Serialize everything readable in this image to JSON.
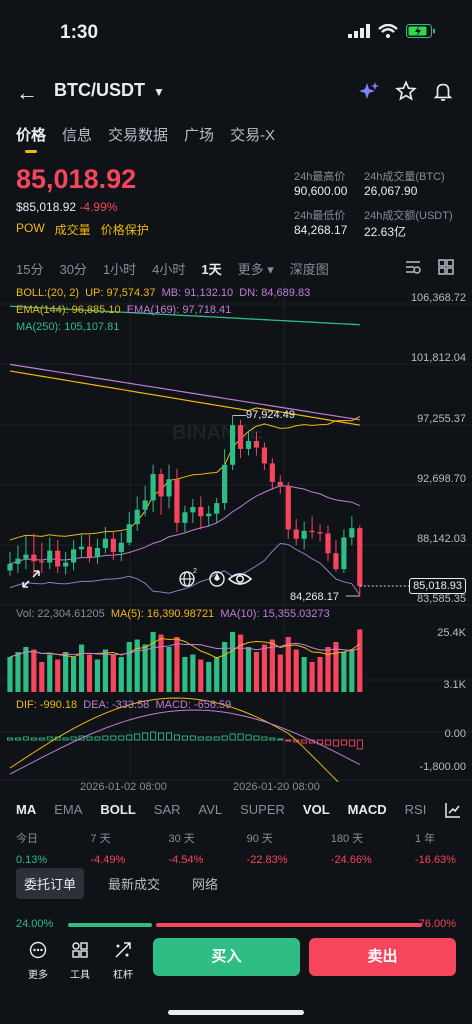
{
  "status": {
    "time": "1:30"
  },
  "header": {
    "pair": "BTC/USDT"
  },
  "tabs": [
    {
      "label": "价格"
    },
    {
      "label": "信息"
    },
    {
      "label": "交易数据"
    },
    {
      "label": "广场"
    },
    {
      "label": "交易-X"
    }
  ],
  "ticker": {
    "last_price": "85,018.92",
    "usd_price": "$85,018.92",
    "change_pct": "-4.99%",
    "tags": [
      "POW",
      "成交量",
      "价格保护"
    ],
    "high_label": "24h最高价",
    "high": "90,600.00",
    "vol_btc_label": "24h成交量(BTC)",
    "vol_btc": "26,067.90",
    "low_label": "24h最低价",
    "low": "84,268.17",
    "vol_usdt_label": "24h成交额(USDT)",
    "vol_usdt": "22.63亿"
  },
  "intervals": [
    "15分",
    "30分",
    "1小时",
    "4小时",
    "1天",
    "更多 ▾",
    "深度图"
  ],
  "indicators": {
    "boll": "BOLL:(20, 2)",
    "up": "UP: 97,574.37",
    "mb": "MB: 91,132.10",
    "dn": "DN: 84,689.83",
    "ema144": "EMA(144): 96,885.10",
    "ema169": "EMA(169): 97,718.41",
    "ma250": "MA(250): 105,107.81",
    "vol": "Vol: 22,304.61205",
    "ma5": "MA(5): 16,390.98721",
    "ma10": "MA(10): 15,355.03273",
    "dif": "DIF: -990.18",
    "dea": "DEA: -333.58",
    "macd": "MACD: -656.59"
  },
  "axis": {
    "price_ticks": [
      "106,368.72",
      "101,812.04",
      "97,255.37",
      "92,698.70",
      "88,142.03",
      "83,585.35"
    ],
    "current_price": "85,018.93",
    "high_mark": "97,924.49",
    "low_mark": "84,268.17",
    "vol_ticks": [
      "25.4K",
      "3.1K"
    ],
    "macd_ticks": [
      "0.00",
      "-1,800.00"
    ],
    "dates": [
      "2026-01-02 08:00",
      "2026-01-20 08:00"
    ],
    "watermark": "BINANCE"
  },
  "indicator_tabs": [
    "MA",
    "EMA",
    "BOLL",
    "SAR",
    "AVL",
    "SUPER",
    "VOL",
    "MACD",
    "RSI"
  ],
  "performance": [
    {
      "label": "今日",
      "value": "0.13%",
      "dir": "up"
    },
    {
      "label": "7 天",
      "value": "-4.49%",
      "dir": "down"
    },
    {
      "label": "30 天",
      "value": "-4.54%",
      "dir": "down"
    },
    {
      "label": "90 天",
      "value": "-22.83%",
      "dir": "down"
    },
    {
      "label": "180 天",
      "value": "-24.66%",
      "dir": "down"
    },
    {
      "label": "1 年",
      "value": "-16.63%",
      "dir": "down"
    }
  ],
  "order_tabs": [
    "委托订单",
    "最新成交",
    "网络"
  ],
  "ratio": {
    "buy": "24.00%",
    "sell": "76.00%",
    "buy_fraction": 0.24
  },
  "bottom": {
    "more": "更多",
    "tools": "工具",
    "leverage": "杠杆",
    "buy": "买入",
    "sell": "卖出"
  },
  "colors": {
    "up": "#2ebd85",
    "down": "#f6465d",
    "accent": "#f0b90b"
  },
  "chart_data": {
    "type": "candlestick",
    "candles": [
      [
        86200,
        86700,
        87600,
        85800
      ],
      [
        86700,
        87100,
        88100,
        86000
      ],
      [
        87100,
        87400,
        88800,
        86300
      ],
      [
        87400,
        86900,
        89000,
        85900
      ],
      [
        86900,
        86800,
        88300,
        86000
      ],
      [
        86800,
        87700,
        88700,
        86300
      ],
      [
        87700,
        86500,
        88500,
        86000
      ],
      [
        86500,
        86800,
        87600,
        85900
      ],
      [
        86800,
        87800,
        88500,
        86200
      ],
      [
        87800,
        88000,
        89000,
        87200
      ],
      [
        88000,
        87200,
        88900,
        86800
      ],
      [
        87200,
        87900,
        88600,
        86700
      ],
      [
        87900,
        88600,
        89500,
        87500
      ],
      [
        88600,
        87600,
        89100,
        87000
      ],
      [
        87600,
        88300,
        89100,
        86900
      ],
      [
        88300,
        89700,
        90600,
        88100
      ],
      [
        89700,
        90800,
        91800,
        89200
      ],
      [
        90800,
        91500,
        92600,
        90300
      ],
      [
        91500,
        93500,
        94200,
        90600
      ],
      [
        93500,
        91800,
        93900,
        90400
      ],
      [
        91800,
        93100,
        94200,
        90900
      ],
      [
        93100,
        89800,
        93900,
        89100
      ],
      [
        89800,
        90600,
        91100,
        89100
      ],
      [
        90600,
        91000,
        91600,
        89800
      ],
      [
        91000,
        90300,
        91800,
        89300
      ],
      [
        90300,
        90500,
        91100,
        89600
      ],
      [
        90500,
        91300,
        91700,
        89800
      ],
      [
        91300,
        94200,
        95400,
        90800
      ],
      [
        94200,
        97200,
        97924,
        93800
      ],
      [
        97200,
        95400,
        97600,
        94700
      ],
      [
        95400,
        96000,
        96800,
        94900
      ],
      [
        96000,
        95500,
        96700,
        94900
      ],
      [
        95500,
        94300,
        95900,
        93800
      ],
      [
        94300,
        92900,
        94700,
        92300
      ],
      [
        92900,
        92600,
        93400,
        92000
      ],
      [
        92600,
        89300,
        92900,
        88600
      ],
      [
        89300,
        88600,
        90100,
        88100
      ],
      [
        88600,
        89200,
        89900,
        87800
      ],
      [
        89200,
        89100,
        90300,
        88600
      ],
      [
        89100,
        89000,
        89700,
        88400
      ],
      [
        89000,
        87500,
        89600,
        86900
      ],
      [
        87500,
        86300,
        88500,
        86100
      ],
      [
        86300,
        88700,
        89300,
        86000
      ],
      [
        88700,
        89400,
        90300,
        88100
      ],
      [
        89400,
        85019,
        89600,
        84268
      ]
    ]
  }
}
